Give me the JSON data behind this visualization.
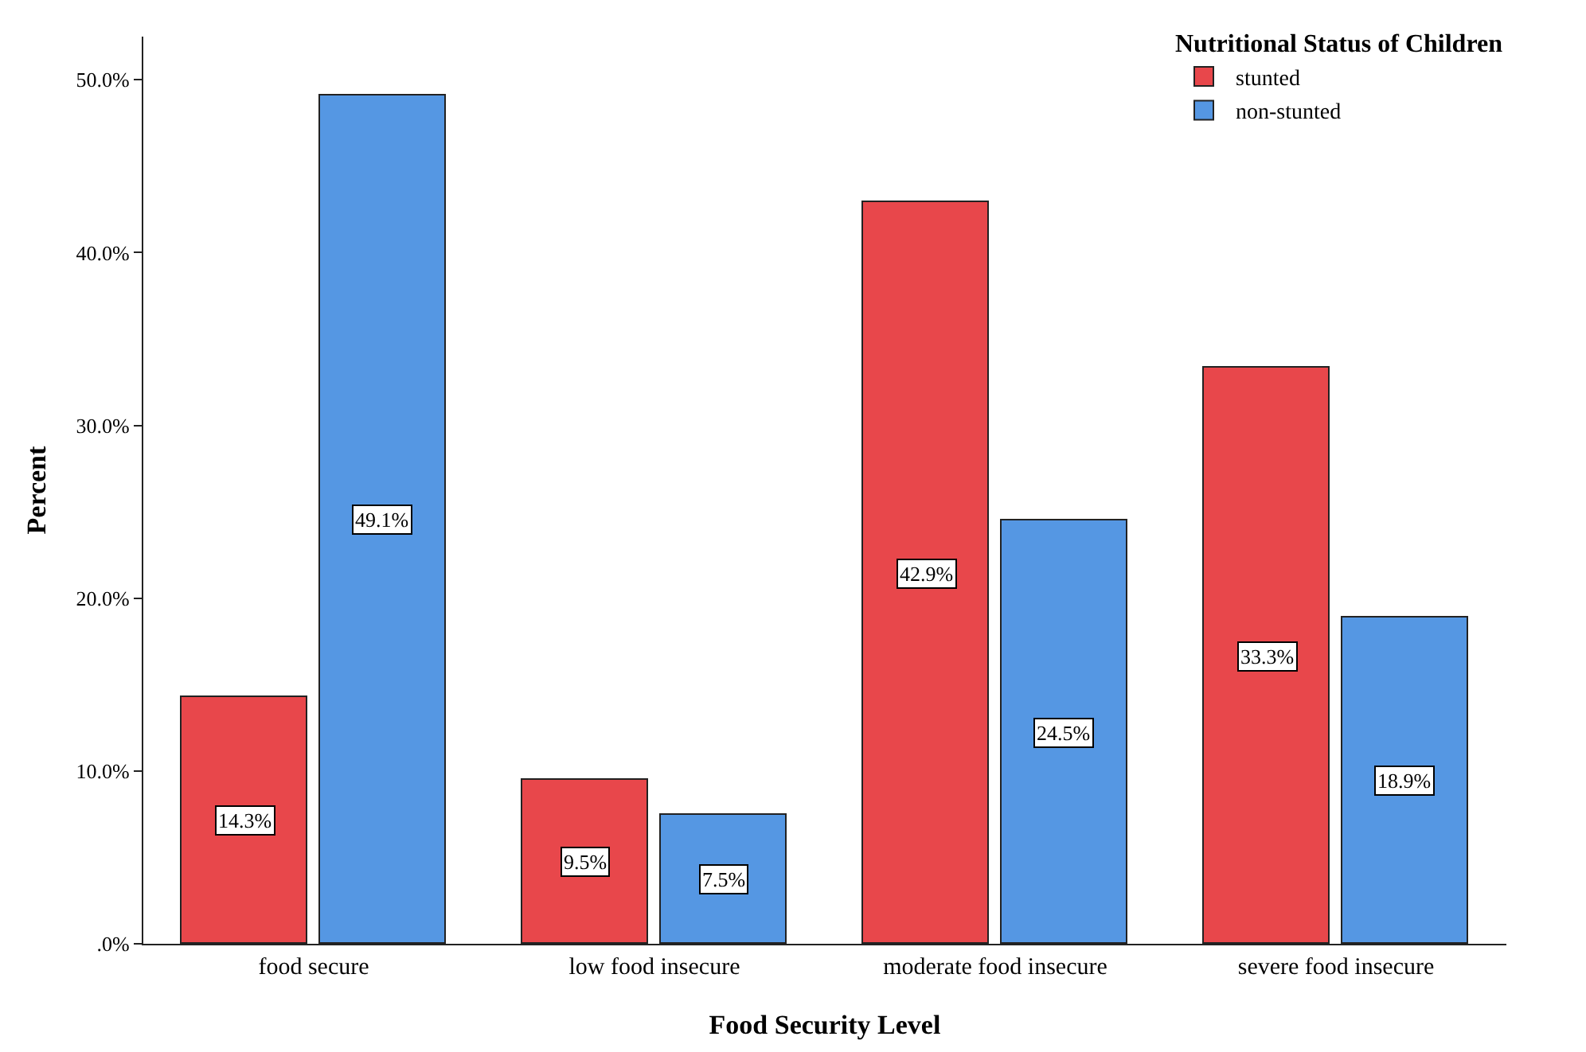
{
  "chart_data": {
    "type": "bar",
    "xlabel": "Food Security Level",
    "ylabel": "Percent",
    "legend_title": "Nutritional Status of Children",
    "categories": [
      "food secure",
      "low food insecure",
      "moderate food insecure",
      "severe food insecure"
    ],
    "series": [
      {
        "name": "stunted",
        "color": "#e8474b",
        "values": [
          14.3,
          9.5,
          42.9,
          33.3
        ],
        "value_labels": [
          "14.3%",
          "9.5%",
          "42.9%",
          "33.3%"
        ]
      },
      {
        "name": "non-stunted",
        "color": "#5597e3",
        "values": [
          49.1,
          7.5,
          24.5,
          18.9
        ],
        "value_labels": [
          "49.1%",
          "7.5%",
          "24.5%",
          "18.9%"
        ]
      }
    ],
    "ylim": [
      0,
      52.5
    ],
    "yticks": [
      {
        "value": 0,
        "label": ".0%"
      },
      {
        "value": 10,
        "label": "10.0%"
      },
      {
        "value": 20,
        "label": "20.0%"
      },
      {
        "value": 30,
        "label": "30.0%"
      },
      {
        "value": 40,
        "label": "40.0%"
      },
      {
        "value": 50,
        "label": "50.0%"
      }
    ],
    "grid": false,
    "legend": "top right"
  }
}
